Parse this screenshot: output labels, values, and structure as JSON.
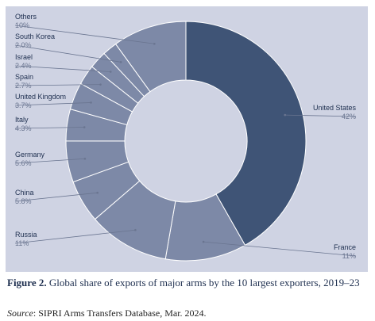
{
  "chart_data": {
    "type": "pie",
    "donut": true,
    "slices": [
      {
        "label": "United States",
        "value": 42,
        "display": "42%",
        "color": "#3f5476",
        "side": "right"
      },
      {
        "label": "France",
        "value": 11,
        "display": "11%",
        "color": "#7d89a7",
        "side": "right"
      },
      {
        "label": "Russia",
        "value": 11,
        "display": "11%",
        "color": "#7d89a7",
        "side": "left"
      },
      {
        "label": "China",
        "value": 5.8,
        "display": "5.8%",
        "color": "#7d89a7",
        "side": "left"
      },
      {
        "label": "Germany",
        "value": 5.6,
        "display": "5.6%",
        "color": "#7d89a7",
        "side": "left"
      },
      {
        "label": "Italy",
        "value": 4.3,
        "display": "4.3%",
        "color": "#7d89a7",
        "side": "left"
      },
      {
        "label": "United Kingdom",
        "value": 3.7,
        "display": "3.7%",
        "color": "#7d89a7",
        "side": "left"
      },
      {
        "label": "Spain",
        "value": 2.7,
        "display": "2.7%",
        "color": "#7d89a7",
        "side": "left"
      },
      {
        "label": "Israel",
        "value": 2.4,
        "display": "2.4%",
        "color": "#7d89a7",
        "side": "left"
      },
      {
        "label": "South Korea",
        "value": 2.0,
        "display": "2.0%",
        "color": "#7d89a7",
        "side": "left"
      },
      {
        "label": "Others",
        "value": 10,
        "display": "10%",
        "color": "#7d89a7",
        "side": "left"
      }
    ]
  },
  "caption": {
    "figure_label": "Figure 2.",
    "title": " Global share of exports of major arms by the 10 largest exporters, 2019–23",
    "source_label": "Source",
    "source_text": ": SIPRI Arms Transfers Database, Mar. 2024."
  },
  "colors": {
    "panel_bg": "#cfd3e3",
    "leader_line": "#6a7590",
    "label_name": "#1e2f4f",
    "label_value": "#6a7590"
  }
}
